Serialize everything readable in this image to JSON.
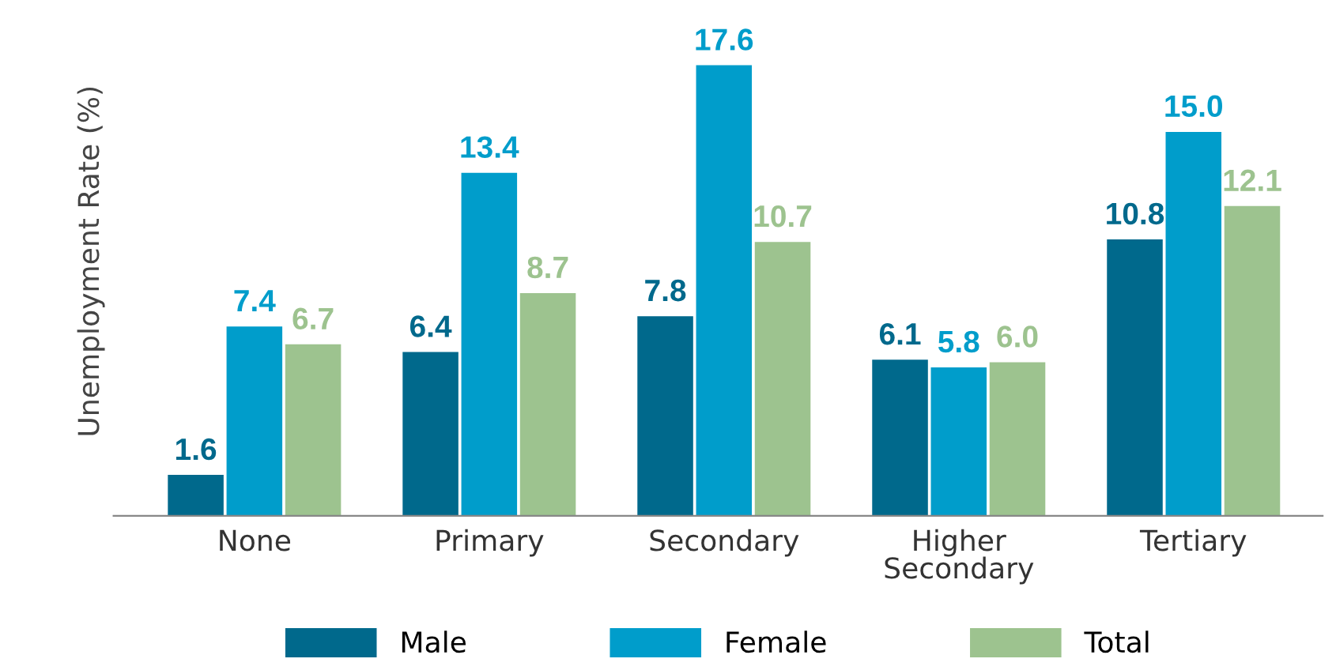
{
  "chart_data": {
    "type": "bar",
    "ylabel": "Unemployment Rate (%)",
    "categories": [
      "None",
      "Primary",
      "Secondary",
      "Higher\nSecondary",
      "Tertiary"
    ],
    "series": [
      {
        "name": "Male",
        "color": "#00698c",
        "values": [
          1.6,
          6.4,
          7.8,
          6.1,
          10.8
        ],
        "value_labels": [
          "1.6",
          "6.4",
          "7.8",
          "6.1",
          "10.8"
        ]
      },
      {
        "name": "Female",
        "color": "#009dcb",
        "values": [
          7.4,
          13.4,
          17.6,
          5.8,
          15.0
        ],
        "value_labels": [
          "7.4",
          "13.4",
          "17.6",
          "5.8",
          "15.0"
        ]
      },
      {
        "name": "Total",
        "color": "#9dc38f",
        "values": [
          6.7,
          8.7,
          10.7,
          6.0,
          12.1
        ],
        "value_labels": [
          "6.7",
          "8.7",
          "10.7",
          "6.0",
          "12.1"
        ]
      }
    ],
    "grid": false,
    "legend": "bottom"
  }
}
